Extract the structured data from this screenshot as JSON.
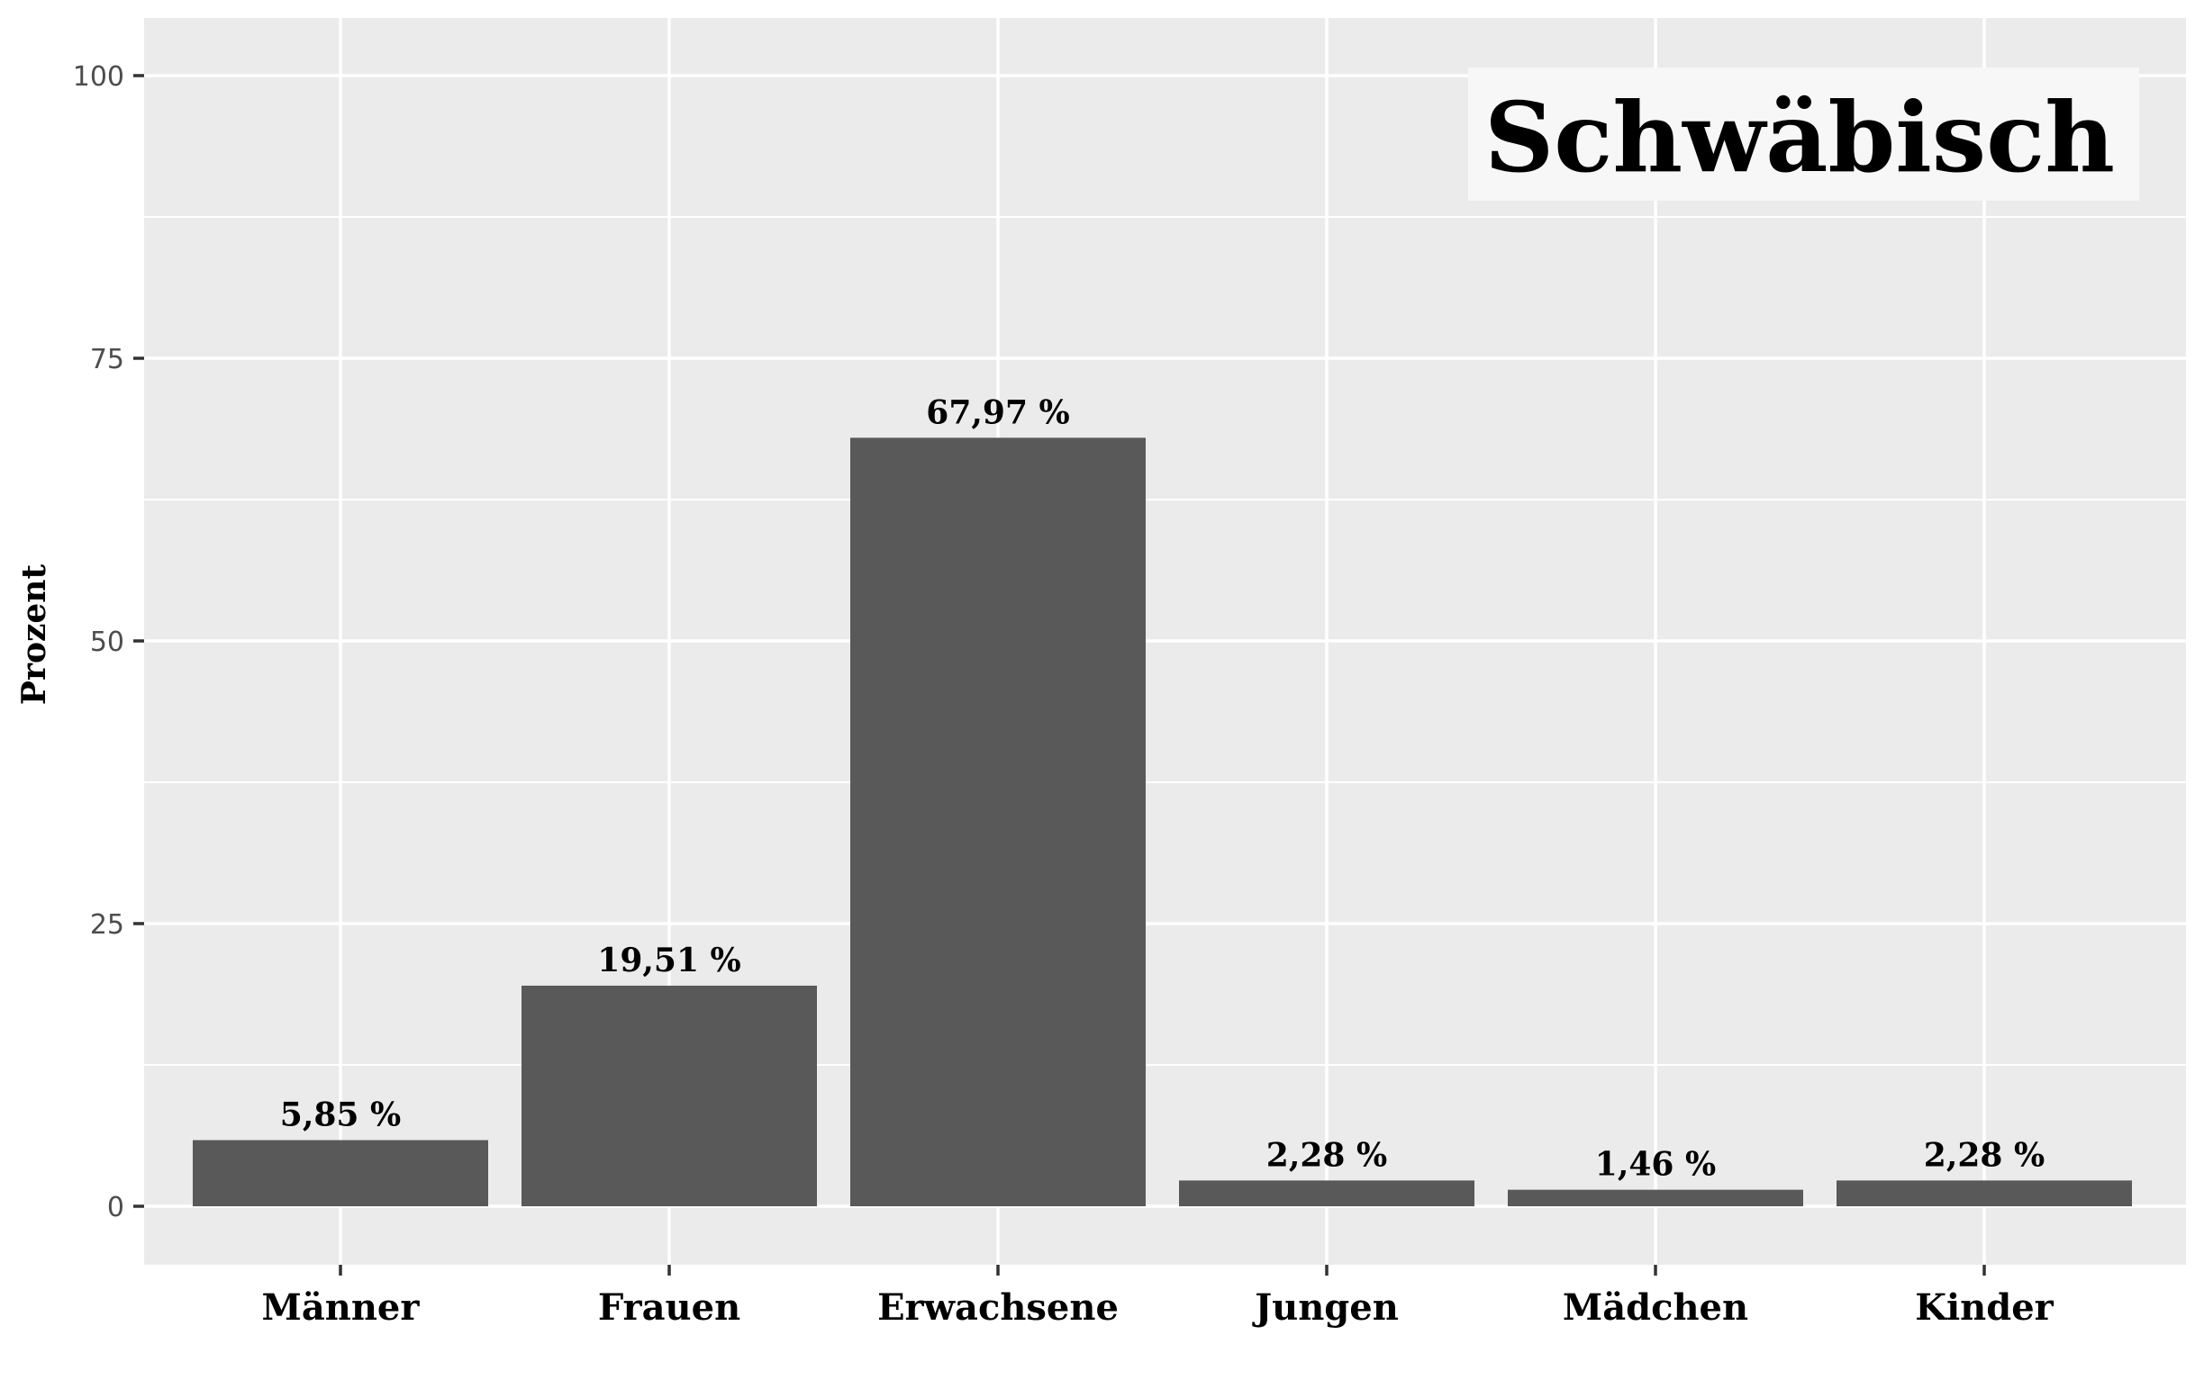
{
  "chart_data": {
    "type": "bar",
    "title": "Schwäbisch",
    "xlabel": "",
    "ylabel": "Prozent",
    "categories": [
      "Männer",
      "Frauen",
      "Erwachsene",
      "Jungen",
      "Mädchen",
      "Kinder"
    ],
    "values": [
      5.85,
      19.51,
      67.97,
      2.28,
      1.46,
      2.28
    ],
    "data_labels": [
      "5,85 %",
      "19,51 %",
      "67,97 %",
      "2,28 %",
      "1,46 %",
      "2,28 %"
    ],
    "ylim": [
      0,
      100
    ],
    "yticks": [
      0,
      25,
      50,
      75,
      100
    ],
    "ytick_labels": [
      "0",
      "25",
      "50",
      "75",
      "100"
    ],
    "grid": true,
    "title_placement": "top-right",
    "colors": {
      "panel_background": "#ebebeb",
      "grid": "#ffffff",
      "bar": "#595959",
      "title_box": "#f7f7f7",
      "tick": "#333333"
    }
  }
}
